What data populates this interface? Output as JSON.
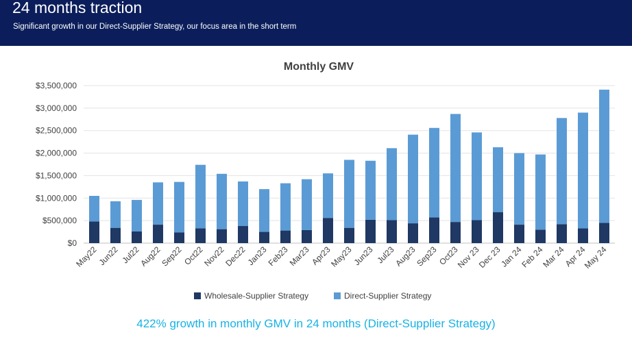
{
  "header": {
    "title": "24 months traction",
    "subtitle": "Significant growth in our Direct-Supplier Strategy, our focus area in the short term"
  },
  "footer": {
    "text": "422% growth in monthly GMV in 24 months (Direct-Supplier Strategy)"
  },
  "colors": {
    "header_bg": "#0b1e5b",
    "wholesale": "#1f3864",
    "direct": "#5b9bd5",
    "footer_text": "#16b2e6"
  },
  "chart_data": {
    "type": "bar",
    "stacked": true,
    "title": "Monthly GMV",
    "categories": [
      "May22",
      "Jun22",
      "Jul22",
      "Aug22",
      "Sep22",
      "Oct22",
      "Nov22",
      "Dec22",
      "Jan23",
      "Feb23",
      "Mar23",
      "Apr23",
      "May23",
      "Jun23",
      "Jul23",
      "Aug23",
      "Sep23",
      "Oct23",
      "Nov 23",
      "Dec 23",
      "Jan 24",
      "Feb 24",
      "Mar 24",
      "Apr 24",
      "May 24"
    ],
    "series": [
      {
        "name": "Wholesale-Supplier Strategy",
        "color": "#1f3864",
        "values": [
          480000,
          340000,
          260000,
          410000,
          240000,
          330000,
          310000,
          380000,
          250000,
          280000,
          290000,
          560000,
          340000,
          520000,
          510000,
          440000,
          570000,
          470000,
          510000,
          690000,
          410000,
          300000,
          420000,
          330000,
          450000
        ]
      },
      {
        "name": "Direct-Supplier Strategy",
        "color": "#5b9bd5",
        "values": [
          570000,
          590000,
          700000,
          940000,
          1120000,
          1410000,
          1230000,
          990000,
          950000,
          1050000,
          1130000,
          990000,
          1510000,
          1310000,
          1600000,
          1970000,
          1990000,
          2400000,
          1950000,
          1440000,
          1590000,
          1670000,
          2360000,
          2570000,
          2960000
        ]
      }
    ],
    "yticks": [
      "$0",
      "$500,000",
      "$1,000,000",
      "$1,500,000",
      "$2,000,000",
      "$2,500,000",
      "$3,000,000",
      "$3,500,000"
    ],
    "ylim": [
      0,
      3500000
    ],
    "grid": true,
    "legend_position": "bottom"
  }
}
